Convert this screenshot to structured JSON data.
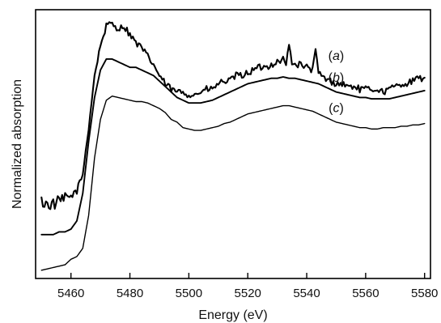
{
  "chart_data": {
    "type": "line",
    "title": "",
    "xlabel": "Energy (eV)",
    "ylabel": "Normalized absorption",
    "xlim": [
      5448,
      5582
    ],
    "ylim": [
      0.02,
      1.0
    ],
    "x_ticks": [
      5460,
      5480,
      5500,
      5520,
      5540,
      5560,
      5580
    ],
    "y_ticks_shown": false,
    "grid": false,
    "legend": "inline labels at right",
    "series": [
      {
        "name": "(a)",
        "label_letter": "a",
        "noise": 0.012,
        "points": [
          [
            5450,
            0.3
          ],
          [
            5452,
            0.29
          ],
          [
            5454,
            0.29
          ],
          [
            5456,
            0.3
          ],
          [
            5458,
            0.31
          ],
          [
            5460,
            0.32
          ],
          [
            5462,
            0.34
          ],
          [
            5464,
            0.4
          ],
          [
            5466,
            0.57
          ],
          [
            5468,
            0.76
          ],
          [
            5470,
            0.87
          ],
          [
            5472,
            0.94
          ],
          [
            5474,
            0.95
          ],
          [
            5476,
            0.93
          ],
          [
            5478,
            0.94
          ],
          [
            5480,
            0.91
          ],
          [
            5482,
            0.88
          ],
          [
            5484,
            0.86
          ],
          [
            5486,
            0.83
          ],
          [
            5488,
            0.8
          ],
          [
            5490,
            0.76
          ],
          [
            5492,
            0.73
          ],
          [
            5494,
            0.71
          ],
          [
            5496,
            0.7
          ],
          [
            5498,
            0.7
          ],
          [
            5500,
            0.69
          ],
          [
            5502,
            0.69
          ],
          [
            5504,
            0.7
          ],
          [
            5506,
            0.71
          ],
          [
            5508,
            0.71
          ],
          [
            5510,
            0.73
          ],
          [
            5512,
            0.74
          ],
          [
            5514,
            0.74
          ],
          [
            5516,
            0.76
          ],
          [
            5518,
            0.76
          ],
          [
            5520,
            0.77
          ],
          [
            5522,
            0.78
          ],
          [
            5524,
            0.79
          ],
          [
            5526,
            0.79
          ],
          [
            5528,
            0.8
          ],
          [
            5530,
            0.81
          ],
          [
            5532,
            0.82
          ],
          [
            5533,
            0.8
          ],
          [
            5534,
            0.87
          ],
          [
            5535,
            0.81
          ],
          [
            5536,
            0.8
          ],
          [
            5538,
            0.8
          ],
          [
            5540,
            0.79
          ],
          [
            5542,
            0.78
          ],
          [
            5543,
            0.85
          ],
          [
            5544,
            0.77
          ],
          [
            5546,
            0.75
          ],
          [
            5548,
            0.74
          ],
          [
            5550,
            0.73
          ],
          [
            5552,
            0.73
          ],
          [
            5554,
            0.72
          ],
          [
            5556,
            0.72
          ],
          [
            5558,
            0.71
          ],
          [
            5560,
            0.71
          ],
          [
            5562,
            0.71
          ],
          [
            5564,
            0.71
          ],
          [
            5566,
            0.7
          ],
          [
            5568,
            0.71
          ],
          [
            5570,
            0.72
          ],
          [
            5572,
            0.73
          ],
          [
            5574,
            0.73
          ],
          [
            5576,
            0.74
          ],
          [
            5578,
            0.75
          ],
          [
            5580,
            0.75
          ]
        ]
      },
      {
        "name": "(b)",
        "label_letter": "b",
        "noise": 0.0,
        "points": [
          [
            5450,
            0.18
          ],
          [
            5452,
            0.18
          ],
          [
            5454,
            0.18
          ],
          [
            5456,
            0.19
          ],
          [
            5458,
            0.19
          ],
          [
            5460,
            0.2
          ],
          [
            5462,
            0.23
          ],
          [
            5464,
            0.33
          ],
          [
            5466,
            0.52
          ],
          [
            5468,
            0.68
          ],
          [
            5470,
            0.78
          ],
          [
            5472,
            0.82
          ],
          [
            5474,
            0.82
          ],
          [
            5476,
            0.81
          ],
          [
            5478,
            0.8
          ],
          [
            5480,
            0.79
          ],
          [
            5482,
            0.79
          ],
          [
            5484,
            0.78
          ],
          [
            5486,
            0.77
          ],
          [
            5488,
            0.76
          ],
          [
            5490,
            0.74
          ],
          [
            5492,
            0.72
          ],
          [
            5494,
            0.7
          ],
          [
            5496,
            0.68
          ],
          [
            5498,
            0.67
          ],
          [
            5500,
            0.66
          ],
          [
            5502,
            0.66
          ],
          [
            5504,
            0.66
          ],
          [
            5506,
            0.665
          ],
          [
            5508,
            0.67
          ],
          [
            5510,
            0.68
          ],
          [
            5512,
            0.69
          ],
          [
            5514,
            0.7
          ],
          [
            5516,
            0.71
          ],
          [
            5518,
            0.72
          ],
          [
            5520,
            0.73
          ],
          [
            5522,
            0.735
          ],
          [
            5524,
            0.74
          ],
          [
            5526,
            0.745
          ],
          [
            5528,
            0.75
          ],
          [
            5530,
            0.75
          ],
          [
            5532,
            0.755
          ],
          [
            5534,
            0.75
          ],
          [
            5536,
            0.75
          ],
          [
            5538,
            0.745
          ],
          [
            5540,
            0.74
          ],
          [
            5542,
            0.735
          ],
          [
            5544,
            0.73
          ],
          [
            5546,
            0.72
          ],
          [
            5548,
            0.71
          ],
          [
            5550,
            0.7
          ],
          [
            5552,
            0.695
          ],
          [
            5554,
            0.69
          ],
          [
            5556,
            0.685
          ],
          [
            5558,
            0.68
          ],
          [
            5560,
            0.68
          ],
          [
            5562,
            0.675
          ],
          [
            5564,
            0.675
          ],
          [
            5566,
            0.675
          ],
          [
            5568,
            0.675
          ],
          [
            5570,
            0.68
          ],
          [
            5572,
            0.685
          ],
          [
            5574,
            0.69
          ],
          [
            5576,
            0.695
          ],
          [
            5578,
            0.7
          ],
          [
            5580,
            0.705
          ]
        ]
      },
      {
        "name": "(c)",
        "label_letter": "c",
        "noise": 0.0,
        "points": [
          [
            5450,
            0.05
          ],
          [
            5452,
            0.055
          ],
          [
            5454,
            0.06
          ],
          [
            5456,
            0.065
          ],
          [
            5458,
            0.07
          ],
          [
            5460,
            0.09
          ],
          [
            5462,
            0.1
          ],
          [
            5464,
            0.13
          ],
          [
            5466,
            0.25
          ],
          [
            5468,
            0.46
          ],
          [
            5470,
            0.6
          ],
          [
            5472,
            0.67
          ],
          [
            5474,
            0.685
          ],
          [
            5476,
            0.68
          ],
          [
            5478,
            0.675
          ],
          [
            5480,
            0.67
          ],
          [
            5482,
            0.665
          ],
          [
            5484,
            0.665
          ],
          [
            5486,
            0.66
          ],
          [
            5488,
            0.65
          ],
          [
            5490,
            0.64
          ],
          [
            5492,
            0.625
          ],
          [
            5494,
            0.6
          ],
          [
            5496,
            0.59
          ],
          [
            5498,
            0.57
          ],
          [
            5500,
            0.565
          ],
          [
            5502,
            0.56
          ],
          [
            5504,
            0.56
          ],
          [
            5506,
            0.565
          ],
          [
            5508,
            0.57
          ],
          [
            5510,
            0.575
          ],
          [
            5512,
            0.585
          ],
          [
            5514,
            0.59
          ],
          [
            5516,
            0.6
          ],
          [
            5518,
            0.61
          ],
          [
            5520,
            0.62
          ],
          [
            5522,
            0.625
          ],
          [
            5524,
            0.63
          ],
          [
            5526,
            0.635
          ],
          [
            5528,
            0.64
          ],
          [
            5530,
            0.645
          ],
          [
            5532,
            0.65
          ],
          [
            5534,
            0.65
          ],
          [
            5536,
            0.645
          ],
          [
            5538,
            0.64
          ],
          [
            5540,
            0.635
          ],
          [
            5542,
            0.63
          ],
          [
            5544,
            0.62
          ],
          [
            5546,
            0.61
          ],
          [
            5548,
            0.6
          ],
          [
            5550,
            0.59
          ],
          [
            5552,
            0.585
          ],
          [
            5554,
            0.58
          ],
          [
            5556,
            0.575
          ],
          [
            5558,
            0.57
          ],
          [
            5560,
            0.57
          ],
          [
            5562,
            0.565
          ],
          [
            5564,
            0.565
          ],
          [
            5566,
            0.57
          ],
          [
            5568,
            0.57
          ],
          [
            5570,
            0.57
          ],
          [
            5572,
            0.575
          ],
          [
            5574,
            0.575
          ],
          [
            5576,
            0.58
          ],
          [
            5578,
            0.58
          ],
          [
            5580,
            0.585
          ]
        ]
      }
    ]
  }
}
